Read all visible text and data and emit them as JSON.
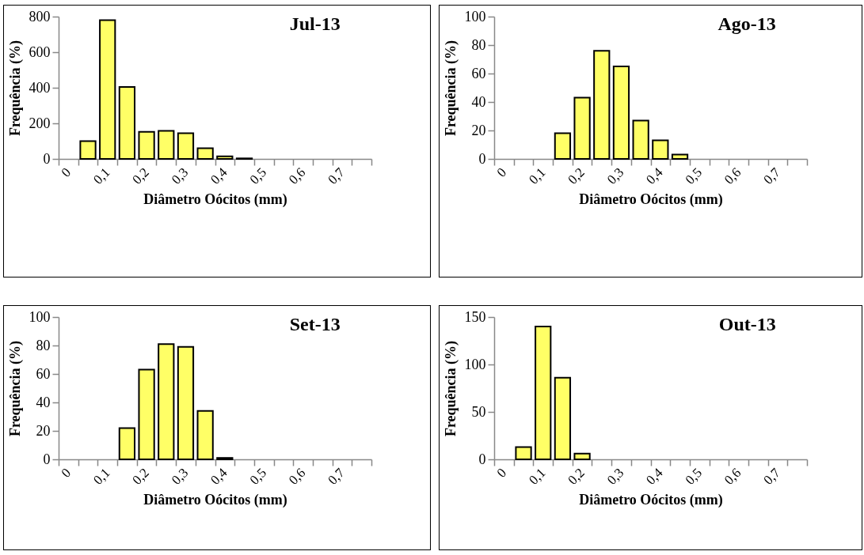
{
  "chart_data": [
    {
      "type": "bar",
      "title": "Jul-13",
      "xlabel": "Diâmetro Oócitos (mm)",
      "ylabel": "Frequência (%)",
      "categories": [
        "0",
        null,
        "0,1",
        null,
        "0,2",
        null,
        "0,3",
        null,
        "0,4",
        null,
        "0,5",
        null,
        "0,6",
        null,
        "0,7",
        null
      ],
      "values": [
        null,
        100,
        780,
        405,
        152,
        158,
        145,
        60,
        15,
        3,
        null,
        null,
        null,
        null,
        null,
        null
      ],
      "color": "#ffff66",
      "ylim": [
        0,
        800
      ],
      "yticks": [
        0,
        200,
        400,
        600,
        800
      ]
    },
    {
      "type": "bar",
      "title": "Ago-13",
      "xlabel": "Diâmetro Oócitos (mm)",
      "ylabel": "Frequência (%)",
      "categories": [
        "0",
        null,
        "0,1",
        null,
        "0,2",
        null,
        "0,3",
        null,
        "0,4",
        null,
        "0,5",
        null,
        "0,6",
        null,
        "0,7",
        null
      ],
      "values": [
        null,
        null,
        null,
        18,
        43,
        76,
        65,
        27,
        13,
        3,
        null,
        null,
        null,
        null,
        null,
        null
      ],
      "color": "#ffff66",
      "ylim": [
        0,
        100
      ],
      "yticks": [
        0,
        20,
        40,
        60,
        80,
        100
      ]
    },
    {
      "type": "bar",
      "title": "Set-13",
      "xlabel": "Diâmetro Oócitos (mm)",
      "ylabel": "Frequência (%)",
      "categories": [
        "0",
        null,
        "0,1",
        null,
        "0,2",
        null,
        "0,3",
        null,
        "0,4",
        null,
        "0,5",
        null,
        "0,6",
        null,
        "0,7",
        null
      ],
      "values": [
        null,
        null,
        null,
        22,
        63,
        81,
        79,
        34,
        1,
        null,
        null,
        null,
        null,
        null,
        null,
        null
      ],
      "color": "#ffff66",
      "ylim": [
        0,
        100
      ],
      "yticks": [
        0,
        20,
        40,
        60,
        80,
        100
      ]
    },
    {
      "type": "bar",
      "title": "Out-13",
      "xlabel": "Diâmetro Oócitos (mm)",
      "ylabel": "Frequência (%)",
      "categories": [
        "0",
        null,
        "0,1",
        null,
        "0,2",
        null,
        "0,3",
        null,
        "0,4",
        null,
        "0,5",
        null,
        "0,6",
        null,
        "0,7",
        null
      ],
      "values": [
        null,
        13,
        140,
        86,
        6,
        null,
        null,
        null,
        null,
        null,
        null,
        null,
        null,
        null,
        null,
        null
      ],
      "color": "#ffff66",
      "ylim": [
        0,
        150
      ],
      "yticks": [
        0,
        50,
        100,
        150
      ]
    }
  ]
}
